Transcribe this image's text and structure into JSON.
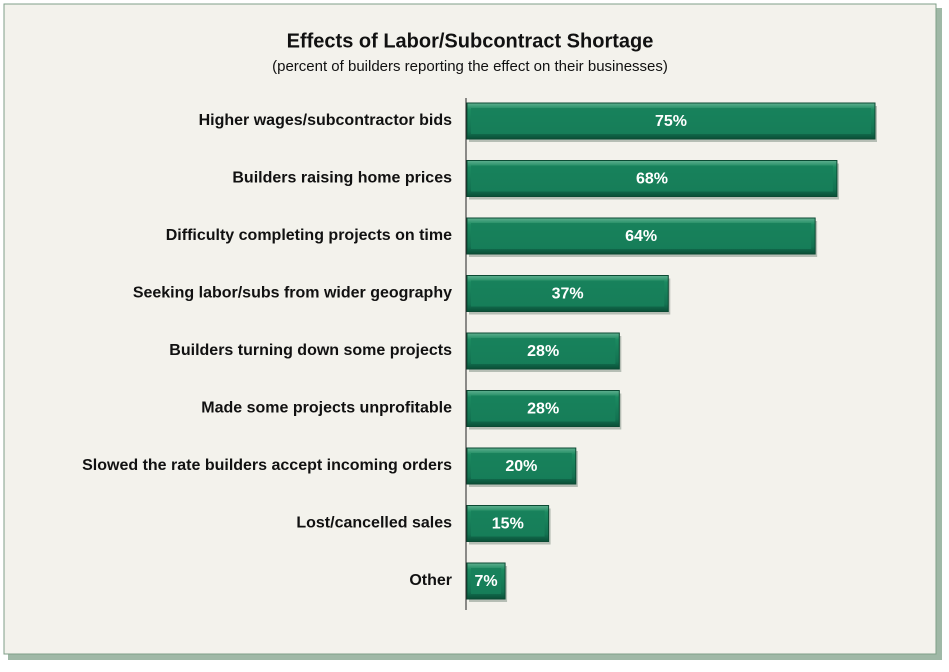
{
  "chart_data": {
    "type": "hbar",
    "title": "Effects of Labor/Subcontract Shortage",
    "subtitle": "(percent of builders reporting the effect on their businesses)",
    "categories": [
      "Higher wages/subcontractor bids",
      "Builders raising home prices",
      "Difficulty completing projects on time",
      "Seeking labor/subs from wider geography",
      "Builders turning down some projects",
      "Made some projects unprofitable",
      "Slowed the rate builders accept incoming orders",
      "Lost/cancelled sales",
      "Other"
    ],
    "values": [
      75,
      68,
      64,
      37,
      28,
      28,
      20,
      15,
      7
    ],
    "value_labels": [
      "75%",
      "68%",
      "64%",
      "37%",
      "28%",
      "28%",
      "20%",
      "15%",
      "7%"
    ],
    "color": "#17805a"
  }
}
